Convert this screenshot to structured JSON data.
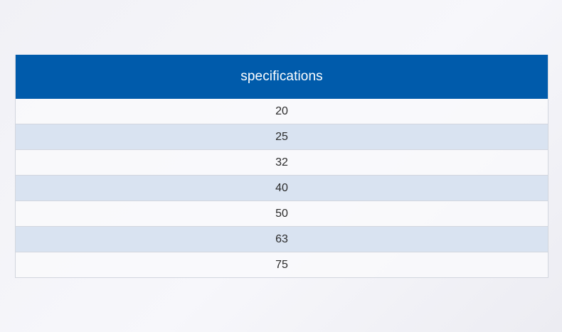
{
  "table": {
    "header": "specifications",
    "rows": [
      "20",
      "25",
      "32",
      "40",
      "50",
      "63",
      "75"
    ]
  },
  "colors": {
    "header_background": "#005bab",
    "header_text": "#ffffff",
    "row_alt_background": "#d9e3f1",
    "row_background": "#f9f9fc",
    "border": "#d2d6de"
  }
}
